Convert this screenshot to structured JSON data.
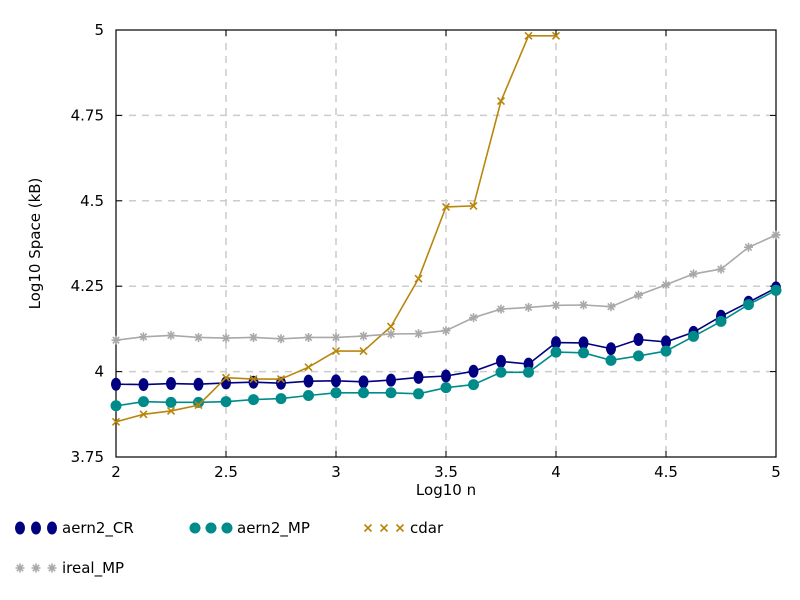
{
  "chart_data": {
    "type": "line",
    "title": "",
    "xlabel": "Log10 n",
    "ylabel": "Log10 Space (kB)",
    "xlim": [
      2,
      5
    ],
    "ylim": [
      3.75,
      5
    ],
    "x_ticks": [
      "2",
      "2.5",
      "3",
      "3.5",
      "4",
      "4.5",
      "5"
    ],
    "y_ticks": [
      "3.75",
      "4",
      "4.25",
      "4.5",
      "4.75",
      "5"
    ],
    "grid": true,
    "legend_position": "bottom",
    "series": [
      {
        "name": "aern2_CR",
        "color": "#000080",
        "marker": "ellipse",
        "x": [
          2,
          2.125,
          2.25,
          2.375,
          2.5,
          2.625,
          2.75,
          2.875,
          3,
          3.125,
          3.25,
          3.375,
          3.5,
          3.625,
          3.75,
          3.875,
          4,
          4.125,
          4.25,
          4.375,
          4.5,
          4.625,
          4.75,
          4.875,
          5
        ],
        "y": [
          3.963,
          3.962,
          3.965,
          3.963,
          3.967,
          3.969,
          3.966,
          3.972,
          3.973,
          3.97,
          3.975,
          3.983,
          3.987,
          4.001,
          4.03,
          4.022,
          4.085,
          4.084,
          4.067,
          4.094,
          4.087,
          4.115,
          4.162,
          4.203,
          4.245
        ]
      },
      {
        "name": "aern2_MP",
        "color": "#008b8b",
        "marker": "circle",
        "x": [
          2,
          2.125,
          2.25,
          2.375,
          2.5,
          2.625,
          2.75,
          2.875,
          3,
          3.125,
          3.25,
          3.375,
          3.5,
          3.625,
          3.75,
          3.875,
          4,
          4.125,
          4.25,
          4.375,
          4.5,
          4.625,
          4.75,
          4.875,
          5
        ],
        "y": [
          3.9,
          3.912,
          3.91,
          3.91,
          3.912,
          3.918,
          3.921,
          3.93,
          3.938,
          3.938,
          3.938,
          3.935,
          3.953,
          3.962,
          3.998,
          3.998,
          4.057,
          4.055,
          4.033,
          4.046,
          4.06,
          4.103,
          4.147,
          4.196,
          4.238
        ]
      },
      {
        "name": "cdar",
        "color": "#b8860b",
        "marker": "x",
        "x": [
          2,
          2.125,
          2.25,
          2.375,
          2.5,
          2.625,
          2.75,
          2.875,
          3,
          3.125,
          3.25,
          3.375,
          3.5,
          3.625,
          3.75,
          3.875,
          4
        ],
        "y": [
          3.853,
          3.875,
          3.885,
          3.902,
          3.982,
          3.978,
          3.978,
          4.013,
          4.06,
          4.06,
          4.132,
          4.272,
          4.482,
          4.485,
          4.792,
          4.983,
          4.983
        ]
      },
      {
        "name": "ireal_MP",
        "color": "#a9a9a9",
        "marker": "star",
        "x": [
          2,
          2.125,
          2.25,
          2.375,
          2.5,
          2.625,
          2.75,
          2.875,
          3,
          3.125,
          3.25,
          3.375,
          3.5,
          3.625,
          3.75,
          3.875,
          4,
          4.125,
          4.25,
          4.375,
          4.5,
          4.625,
          4.75,
          4.875,
          5
        ],
        "y": [
          4.092,
          4.102,
          4.106,
          4.1,
          4.098,
          4.1,
          4.096,
          4.1,
          4.1,
          4.104,
          4.11,
          4.111,
          4.12,
          4.158,
          4.183,
          4.188,
          4.194,
          4.195,
          4.19,
          4.224,
          4.254,
          4.286,
          4.3,
          4.364,
          4.4
        ]
      }
    ]
  }
}
